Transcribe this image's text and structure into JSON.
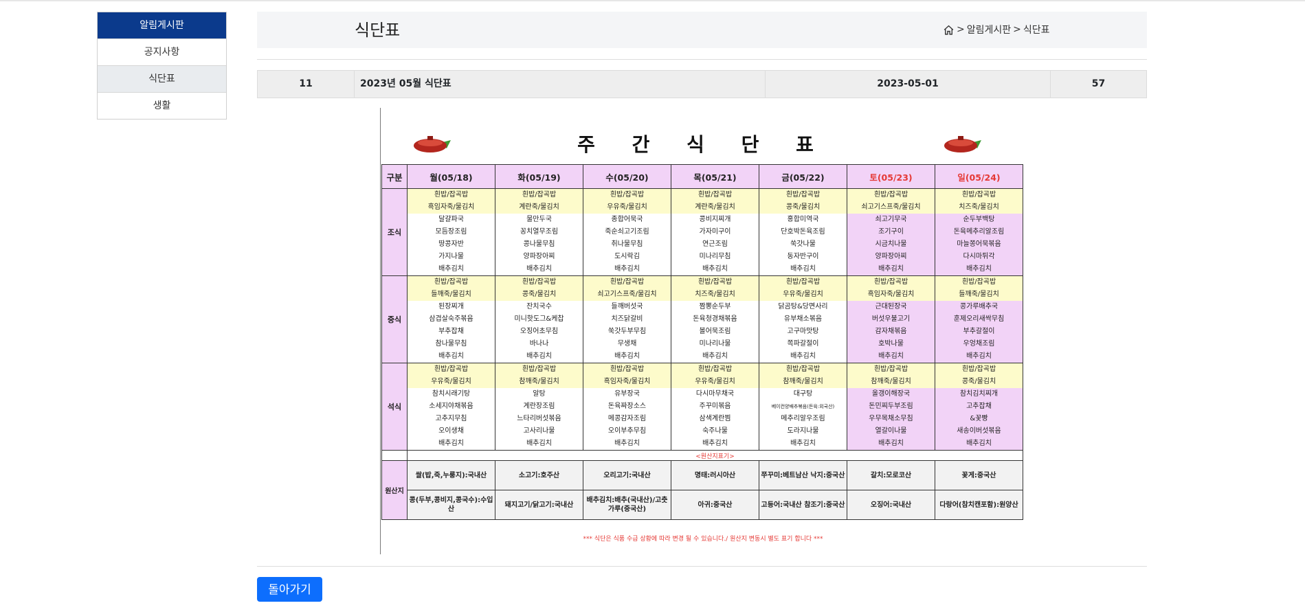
{
  "sidebar": {
    "items": [
      {
        "label": "알림게시판"
      },
      {
        "label": "공지사항"
      },
      {
        "label": "식단표"
      },
      {
        "label": "생활"
      }
    ]
  },
  "header": {
    "title": "식단표",
    "breadcrumb": {
      "sep1": ">",
      "board": "알림게시판",
      "sep2": ">",
      "current": "식단표"
    }
  },
  "post": {
    "number": "11",
    "title": "2023년 05월 식단표",
    "date": "2023-05-01",
    "views": "57"
  },
  "menu": {
    "heading": "주 간 식 단 표",
    "corner": "구분",
    "days": [
      "월(05/18)",
      "화(05/19)",
      "수(05/20)",
      "목(05/21)",
      "금(05/22)",
      "토(05/23)",
      "일(05/24)"
    ],
    "meals": [
      {
        "label": "조식",
        "rows": [
          [
            "흰밥/잡곡밥",
            "흰밥/잡곡밥",
            "흰밥/잡곡밥",
            "흰밥/잡곡밥",
            "흰밥/잡곡밥",
            "흰밥/잡곡밥",
            "흰밥/잡곡밥"
          ],
          [
            "흑임자죽/물김치",
            "계란죽/물김치",
            "우유죽/물김치",
            "계란죽/물김치",
            "콩죽/물김치",
            "쇠고기스프죽/물김치",
            "치즈죽/물김치"
          ],
          [
            "달걀파국",
            "물만두국",
            "종합어묵국",
            "콩비지찌개",
            "홍합미역국",
            "쇠고기무국",
            "순두부백탕"
          ],
          [
            "모듬장조림",
            "꽁치열무조림",
            "죽순쇠고기조림",
            "가자미구이",
            "단호박돈육조림",
            "조기구이",
            "돈육메추리알조림"
          ],
          [
            "땅콩자반",
            "콩나물무침",
            "취나물무침",
            "연근조림",
            "쑥갓나물",
            "시금치나물",
            "마늘쫑어묵볶음"
          ],
          [
            "가지나물",
            "양파장아찌",
            "도시락김",
            "미나리무침",
            "동자반구이",
            "양파장아찌",
            "다시마튀각"
          ],
          [
            "배추김치",
            "배추김치",
            "배추김치",
            "배추김치",
            "배추김치",
            "배추김치",
            "배추김치"
          ]
        ]
      },
      {
        "label": "중식",
        "rows": [
          [
            "흰밥/잡곡밥",
            "흰밥/잡곡밥",
            "흰밥/잡곡밥",
            "흰밥/잡곡밥",
            "흰밥/잡곡밥",
            "흰밥/잡곡밥",
            "흰밥/잡곡밥"
          ],
          [
            "들깨죽/물김치",
            "콩죽/물김치",
            "쇠고기스프죽/물김치",
            "치즈죽/물김치",
            "우유죽/물김치",
            "흑임자죽/물김치",
            "들깨죽/물김치"
          ],
          [
            "된장찌개",
            "잔치국수",
            "들깨버섯국",
            "짬뽕순두부",
            "닭곰탕&당면사리",
            "근대된장국",
            "콩가루배추국"
          ],
          [
            "삼겹살숙주볶음",
            "미니핫도그&케찹",
            "치즈닭갈비",
            "돈육청경채볶음",
            "유부채소볶음",
            "버섯우불고기",
            "훈제오리새싹무침"
          ],
          [
            "부추잡채",
            "오징어초무침",
            "쑥갓두부무침",
            "볼어묵조림",
            "고구마맛탕",
            "감자채볶음",
            "부추갈절이"
          ],
          [
            "참나물무침",
            "바나나",
            "무생채",
            "미나리나물",
            "쪽파갈절이",
            "호박나물",
            "우엉채조림"
          ],
          [
            "배추김치",
            "배추김치",
            "배추김치",
            "배추김치",
            "배추김치",
            "배추김치",
            "배추김치"
          ]
        ]
      },
      {
        "label": "석식",
        "rows": [
          [
            "흰밥/잡곡밥",
            "흰밥/잡곡밥",
            "흰밥/잡곡밥",
            "흰밥/잡곡밥",
            "흰밥/잡곡밥",
            "흰밥/잡곡밥",
            "흰밥/잡곡밥"
          ],
          [
            "우유죽/물김치",
            "참깨죽/물김치",
            "흑임자죽/물김치",
            "우유죽/물김치",
            "참깨죽/물김치",
            "참깨죽/물김치",
            "콩죽/물김치"
          ],
          [
            "참치시래기탕",
            "알탕",
            "유부장국",
            "다시마무채국",
            "대구탕",
            "올갱이해장국",
            "참치김치찌개"
          ],
          [
            "소세지야채볶음",
            "계란장조림",
            "돈육짜장소스",
            "주꾸미볶음",
            "베이컨양배추볶음(돈육:외국산)",
            "돈민찌두부조림",
            "고추잡채"
          ],
          [
            "고추지무침",
            "느타리버섯볶음",
            "메콩감자조림",
            "삼색계란찜",
            "메추리알우조림",
            "우무목채소무침",
            "&꽃빵"
          ],
          [
            "오이생채",
            "고사리나물",
            "오이부추무침",
            "숙주나물",
            "도라지나물",
            "열갈이나물",
            "새송이버섯볶음"
          ],
          [
            "배추김치",
            "배추김치",
            "배추김치",
            "배추김치",
            "배추김치",
            "배추김치",
            "배추김치"
          ]
        ]
      }
    ],
    "origin": {
      "note": "<원산지표기>",
      "label": "원산지",
      "row1": [
        "쌀(밥,죽,누룽지):국내산",
        "소고기:호주산",
        "오리고기:국내산",
        "명태:러시아산",
        "쭈꾸미:베트남산 낙지:중국산",
        "갈치:모로코산",
        "꽃게:중국산"
      ],
      "row2": [
        "콩(두부,콩비지,콩국수):수입산",
        "돼지고기/닭고기:국내산",
        "배추김치:배추(국내산)/고춧가루(중국산)",
        "아귀:중국산",
        "고등어:국내산 참조기:중국산",
        "오징어:국내산",
        "다랑어(참치캔포함):원양산"
      ]
    },
    "footnote": "*** 식단은 식품 수급 상황에 따라 변경 될 수 있습니다./ 원산지 변동시 별도 표기 합니다 ***"
  },
  "actions": {
    "back_label": "돌아가기"
  },
  "colors": {
    "sidebar_head": "#0b3a8c",
    "button": "#0d6efd",
    "weekend_bg": "#f2d3f7",
    "staple_bg": "#fdfbcb",
    "weekend_text": "#e53935"
  }
}
